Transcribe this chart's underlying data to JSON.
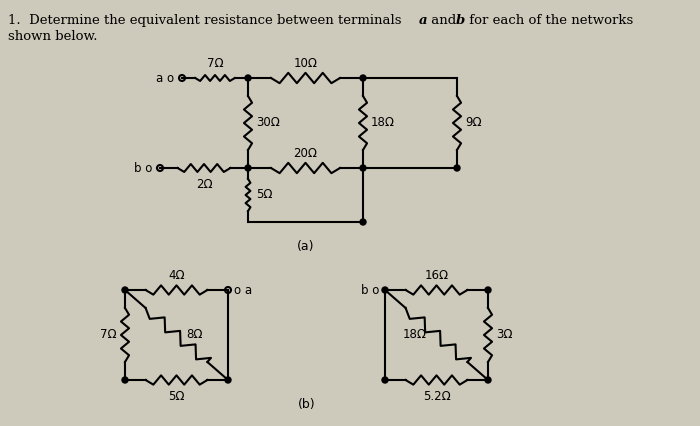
{
  "bg_color": "#cdc9bb",
  "text_color": "#000000",
  "fig_label_a": "(a)",
  "fig_label_b": "(b)",
  "title1_normal": "1.  Determine the equivalent resistance between terminals ",
  "title1_italic_a": "a",
  "title1_and": " and ",
  "title1_italic_b": "b",
  "title1_end": " for each of the networks",
  "title2": "shown below."
}
